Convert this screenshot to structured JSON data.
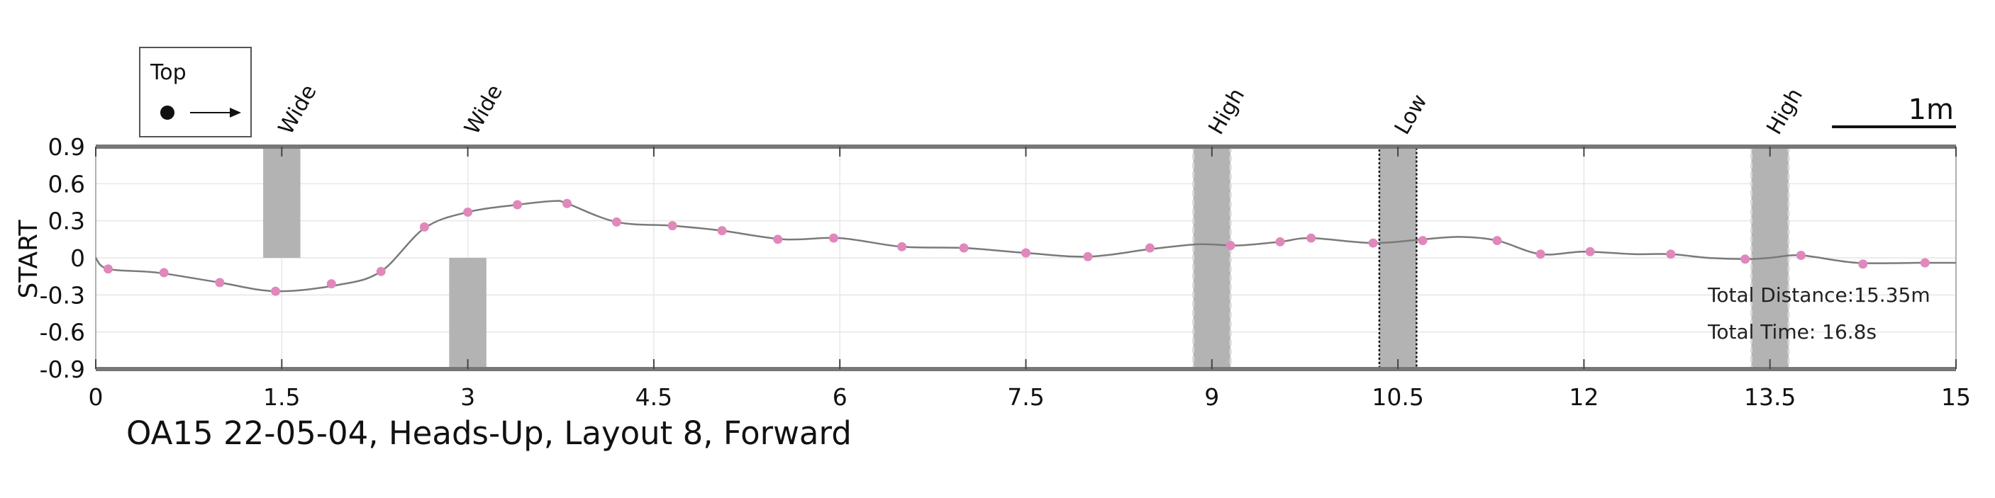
{
  "chart_data": {
    "type": "line",
    "title": "",
    "caption": "OA15 22-05-04, Heads-Up, Layout 8, Forward",
    "ylabel": "START",
    "xlabel": "",
    "xlim": [
      0,
      15
    ],
    "ylim": [
      -0.9,
      0.9
    ],
    "xticks": [
      0,
      1.5,
      3,
      4.5,
      6,
      7.5,
      9,
      10.5,
      12,
      13.5,
      15
    ],
    "xtick_labels": [
      "0",
      "1.5",
      "3",
      "4.5",
      "6",
      "7.5",
      "9",
      "10.5",
      "12",
      "13.5",
      "15"
    ],
    "yticks": [
      0.9,
      0.6,
      0.3,
      0,
      -0.3,
      -0.6,
      -0.9
    ],
    "ytick_labels": [
      "0.9",
      "0.6",
      "0.3",
      "0",
      "-0.3",
      "-0.6",
      "-0.9"
    ],
    "grid": true,
    "line_color": "#7a7a7a",
    "marker_color": "#e088bb",
    "path": {
      "x": [
        0,
        0.1,
        0.5,
        1.0,
        1.45,
        1.95,
        2.3,
        2.65,
        3.0,
        3.4,
        3.7,
        3.8,
        4.2,
        4.65,
        5.05,
        5.55,
        6.0,
        6.5,
        7.0,
        7.5,
        8.0,
        8.5,
        8.9,
        9.2,
        9.55,
        9.8,
        10.3,
        10.7,
        11.0,
        11.3,
        11.65,
        12.0,
        12.4,
        12.7,
        13.0,
        13.3,
        13.5,
        13.75,
        14.2,
        14.7,
        15.0
      ],
      "y": [
        0,
        -0.09,
        -0.12,
        -0.2,
        -0.27,
        -0.22,
        -0.11,
        0.24,
        0.37,
        0.43,
        0.46,
        0.44,
        0.29,
        0.26,
        0.22,
        0.15,
        0.16,
        0.09,
        0.08,
        0.04,
        0.01,
        0.07,
        0.11,
        0.1,
        0.13,
        0.16,
        0.12,
        0.15,
        0.17,
        0.14,
        0.03,
        0.05,
        0.03,
        0.03,
        0.0,
        -0.01,
        0.0,
        0.02,
        -0.04,
        -0.04,
        -0.04
      ]
    },
    "markers": {
      "x": [
        0.1,
        0.55,
        1.0,
        1.45,
        1.9,
        2.3,
        2.65,
        3.0,
        3.4,
        3.8,
        4.2,
        4.65,
        5.05,
        5.5,
        5.95,
        6.5,
        7.0,
        7.5,
        8.0,
        8.5,
        9.15,
        9.55,
        9.8,
        10.3,
        10.7,
        11.3,
        11.65,
        12.05,
        12.7,
        13.3,
        13.75,
        14.25,
        14.75
      ],
      "y": [
        -0.09,
        -0.12,
        -0.2,
        -0.27,
        -0.21,
        -0.11,
        0.25,
        0.37,
        0.43,
        0.44,
        0.29,
        0.26,
        0.22,
        0.15,
        0.16,
        0.09,
        0.08,
        0.04,
        0.01,
        0.08,
        0.1,
        0.13,
        0.16,
        0.12,
        0.14,
        0.14,
        0.03,
        0.05,
        0.03,
        -0.01,
        0.02,
        -0.05,
        -0.04
      ]
    },
    "obstacles": [
      {
        "label": "Wide",
        "x0": 1.35,
        "x1": 1.65,
        "y0": 0,
        "y1": 0.9,
        "border": "none"
      },
      {
        "label": "Wide",
        "x0": 2.85,
        "x1": 3.15,
        "y0": -0.9,
        "y1": 0,
        "border": "none"
      },
      {
        "label": "High",
        "x0": 8.85,
        "x1": 9.15,
        "y0": -0.9,
        "y1": 0.9,
        "border": "dashed"
      },
      {
        "label": "Low",
        "x0": 10.35,
        "x1": 10.65,
        "y0": -0.9,
        "y1": 0.9,
        "border": "dotted"
      },
      {
        "label": "High",
        "x0": 13.35,
        "x1": 13.65,
        "y0": -0.9,
        "y1": 0.9,
        "border": "dashed"
      }
    ],
    "obstacle_color": "#b3b3b3",
    "legend": {
      "title": "Top",
      "placement": "top-left"
    },
    "scale_bar": {
      "label": "1m",
      "length": 1,
      "placement": "top-right"
    },
    "annotations": [
      {
        "text": "Total Distance:15.35m"
      },
      {
        "text": "Total Time: 16.8s"
      }
    ]
  }
}
